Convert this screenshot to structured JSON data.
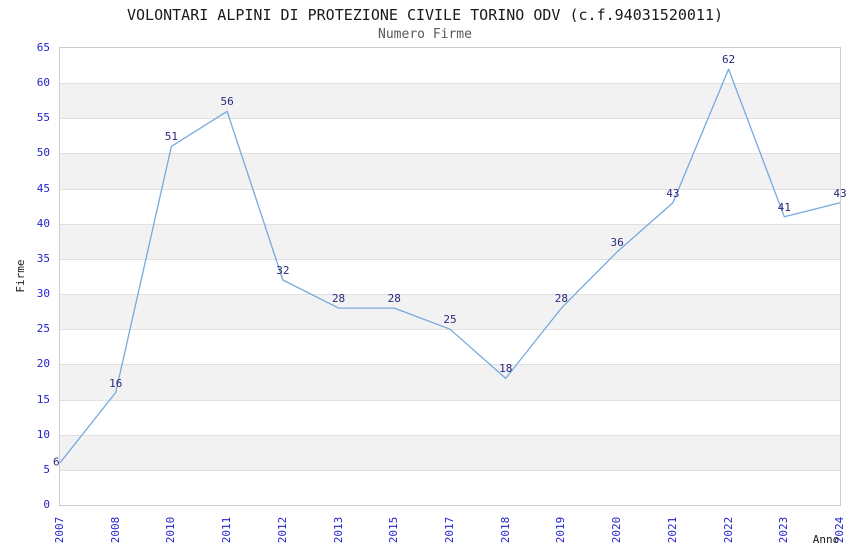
{
  "chart_data": {
    "type": "line",
    "title": "VOLONTARI ALPINI DI PROTEZIONE CIVILE TORINO ODV (c.f.94031520011)",
    "subtitle": "Numero Firme",
    "xlabel": "Anno",
    "ylabel": "Firme",
    "categories": [
      "2007",
      "2008",
      "2010",
      "2011",
      "2012",
      "2013",
      "2015",
      "2017",
      "2018",
      "2019",
      "2020",
      "2021",
      "2022",
      "2023",
      "2024"
    ],
    "values": [
      6,
      16,
      51,
      56,
      32,
      28,
      28,
      25,
      18,
      28,
      36,
      43,
      62,
      41,
      43
    ],
    "ylim": [
      0,
      65
    ],
    "ytick_step": 5,
    "yticks": [
      0,
      5,
      10,
      15,
      20,
      25,
      30,
      35,
      40,
      45,
      50,
      55,
      60,
      65
    ],
    "grid": true,
    "banded_rows": true,
    "data_labels_shown": true,
    "legend_position": "none",
    "colors": {
      "line": "#76aade",
      "data_label": "#28287d",
      "tick_label": "#2323cc",
      "band": "#f2f2f2",
      "gridline": "#e0e0e0",
      "plot_border": "#cccccc",
      "title": "#1a1a1a",
      "subtitle": "#595959",
      "axis_title": "#1a1a1a"
    }
  }
}
